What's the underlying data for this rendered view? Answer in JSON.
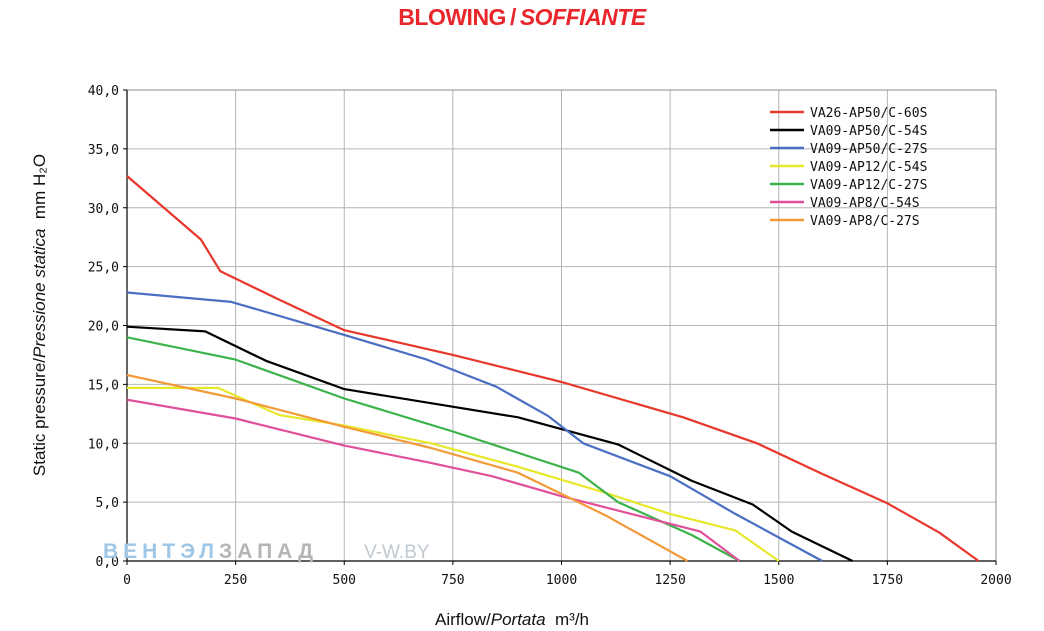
{
  "title": {
    "main": "BLOWING",
    "sep": "/",
    "italic": "SOFFIANTE",
    "color": "#e8262b"
  },
  "watermark": {
    "part1": "ВЕНТЭЛ",
    "part2": "ЗАПАД",
    "site": "V-W.BY"
  },
  "chart_data": {
    "type": "line",
    "xlabel": {
      "main": "Airflow",
      "sep": "/",
      "italic": "Portata",
      "unit": "m³/h"
    },
    "ylabel": {
      "main": "Static pressure",
      "sep": "/",
      "italic": "Pressione statica",
      "unit": "mm  H₂O"
    },
    "xlim": [
      0,
      2000
    ],
    "ylim": [
      0,
      40
    ],
    "x_ticks": [
      "0",
      "250",
      "500",
      "750",
      "1000",
      "1250",
      "1500",
      "1750",
      "2000"
    ],
    "y_ticks": [
      "0,0",
      "5,0",
      "10,0",
      "15,0",
      "20,0",
      "25,0",
      "30,0",
      "35,0",
      "40,0"
    ],
    "grid": true,
    "legend_position": "top-right",
    "series": [
      {
        "name": "VA26-AP50/C-60S",
        "color": "#e8372b",
        "points": [
          [
            0,
            32.7
          ],
          [
            170,
            27.3
          ],
          [
            215,
            24.6
          ],
          [
            350,
            22.2
          ],
          [
            500,
            19.6
          ],
          [
            750,
            17.5
          ],
          [
            1000,
            15.2
          ],
          [
            1280,
            12.2
          ],
          [
            1450,
            10.0
          ],
          [
            1600,
            7.4
          ],
          [
            1750,
            4.9
          ],
          [
            1870,
            2.4
          ],
          [
            1960,
            0
          ]
        ]
      },
      {
        "name": "VA09-AP50/C-54S",
        "color": "#000000",
        "points": [
          [
            0,
            19.9
          ],
          [
            180,
            19.5
          ],
          [
            320,
            17.0
          ],
          [
            500,
            14.6
          ],
          [
            700,
            13.4
          ],
          [
            900,
            12.2
          ],
          [
            1130,
            9.9
          ],
          [
            1300,
            6.8
          ],
          [
            1440,
            4.8
          ],
          [
            1530,
            2.5
          ],
          [
            1670,
            0
          ]
        ]
      },
      {
        "name": "VA09-AP50/C-27S",
        "color": "#4a6fc2",
        "points": [
          [
            0,
            22.8
          ],
          [
            240,
            22.0
          ],
          [
            500,
            19.2
          ],
          [
            690,
            17.1
          ],
          [
            850,
            14.8
          ],
          [
            970,
            12.3
          ],
          [
            1050,
            10.0
          ],
          [
            1250,
            7.2
          ],
          [
            1400,
            4.0
          ],
          [
            1500,
            2.0
          ],
          [
            1600,
            0
          ]
        ]
      },
      {
        "name": "VA09-AP12/C-54S",
        "color": "#e8e82a",
        "points": [
          [
            0,
            14.7
          ],
          [
            210,
            14.7
          ],
          [
            350,
            12.4
          ],
          [
            500,
            11.5
          ],
          [
            700,
            10.0
          ],
          [
            900,
            8.0
          ],
          [
            1100,
            5.8
          ],
          [
            1250,
            4.0
          ],
          [
            1400,
            2.6
          ],
          [
            1500,
            0
          ]
        ]
      },
      {
        "name": "VA09-AP12/C-27S",
        "color": "#3cb34a",
        "points": [
          [
            0,
            19.0
          ],
          [
            250,
            17.1
          ],
          [
            500,
            13.8
          ],
          [
            750,
            11.0
          ],
          [
            1040,
            7.5
          ],
          [
            1130,
            5.0
          ],
          [
            1300,
            2.2
          ],
          [
            1410,
            0
          ]
        ]
      },
      {
        "name": "VA09-AP8/C-54S",
        "color": "#e0509a",
        "points": [
          [
            0,
            13.7
          ],
          [
            250,
            12.1
          ],
          [
            500,
            9.8
          ],
          [
            690,
            8.4
          ],
          [
            840,
            7.2
          ],
          [
            1000,
            5.5
          ],
          [
            1320,
            2.5
          ],
          [
            1410,
            0
          ]
        ]
      },
      {
        "name": "VA09-AP8/C-27S",
        "color": "#f29a38",
        "points": [
          [
            0,
            15.8
          ],
          [
            250,
            13.8
          ],
          [
            500,
            11.4
          ],
          [
            700,
            9.6
          ],
          [
            900,
            7.5
          ],
          [
            1100,
            3.9
          ],
          [
            1290,
            0
          ]
        ]
      }
    ]
  }
}
